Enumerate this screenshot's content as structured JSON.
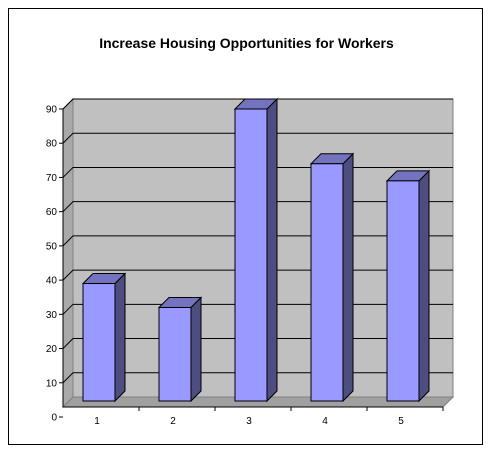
{
  "chart_data": {
    "type": "bar",
    "title": "Increase Housing Opportunities for Workers",
    "xlabel": "",
    "ylabel": "",
    "categories": [
      "1",
      "2",
      "3",
      "4",
      "5"
    ],
    "values": [
      39,
      32,
      90,
      74,
      69
    ],
    "ylim": [
      0,
      90
    ],
    "yticks": [
      0,
      10,
      20,
      30,
      40,
      50,
      60,
      70,
      80,
      90
    ],
    "grid": true,
    "legend": "none",
    "style": "3d-column",
    "colors": {
      "bar_front": "#9999ff",
      "bar_side": "#4d4d80",
      "bar_top": "#7373bf",
      "plot_background": "#c0c0c0",
      "gridline": "#000000"
    }
  }
}
